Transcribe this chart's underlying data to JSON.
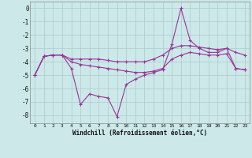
{
  "xlabel": "Windchill (Refroidissement éolien,°C)",
  "background_color": "#cce8e8",
  "grid_color": "#aacccc",
  "line_color": "#993399",
  "x_all": [
    0,
    1,
    2,
    3,
    4,
    5,
    6,
    7,
    8,
    9,
    10,
    11,
    12,
    13,
    14,
    15,
    16,
    17,
    18,
    19,
    20,
    21,
    22,
    23
  ],
  "y_line1": [
    -5.0,
    -3.6,
    -3.5,
    -3.5,
    -3.8,
    -3.8,
    -3.8,
    -3.8,
    -3.9,
    -4.0,
    -4.0,
    -4.0,
    -4.0,
    -3.8,
    -3.5,
    -3.0,
    -2.8,
    -2.8,
    -2.9,
    -3.0,
    -3.1,
    -3.0,
    -3.3,
    -3.5
  ],
  "y_line2": [
    -5.0,
    -3.6,
    -3.5,
    -3.5,
    -4.0,
    -4.2,
    -4.3,
    -4.4,
    -4.5,
    -4.6,
    -4.7,
    -4.8,
    -4.8,
    -4.7,
    -4.5,
    -3.8,
    -3.5,
    -3.3,
    -3.4,
    -3.5,
    -3.5,
    -3.4,
    -4.5,
    -4.6
  ],
  "y_line3": [
    -5.0,
    -3.6,
    -3.5,
    -3.5,
    -4.5,
    -7.2,
    -6.4,
    -6.6,
    -6.7,
    -8.1,
    -5.7,
    -5.3,
    -5.0,
    -4.8,
    -4.6,
    -2.7,
    0.0,
    -2.4,
    -3.0,
    -3.3,
    -3.3,
    -3.0,
    -4.5,
    -4.6
  ],
  "xlim": [
    -0.5,
    23.5
  ],
  "ylim": [
    -8.6,
    0.5
  ],
  "yticks": [
    0,
    -1,
    -2,
    -3,
    -4,
    -5,
    -6,
    -7,
    -8
  ],
  "xtick_labels": [
    "0",
    "1",
    "2",
    "3",
    "4",
    "5",
    "6",
    "7",
    "8",
    "9",
    "10",
    "11",
    "12",
    "13",
    "14",
    "15",
    "16",
    "17",
    "18",
    "19",
    "20",
    "21",
    "22",
    "23"
  ],
  "figsize": [
    3.2,
    2.0
  ],
  "dpi": 100
}
